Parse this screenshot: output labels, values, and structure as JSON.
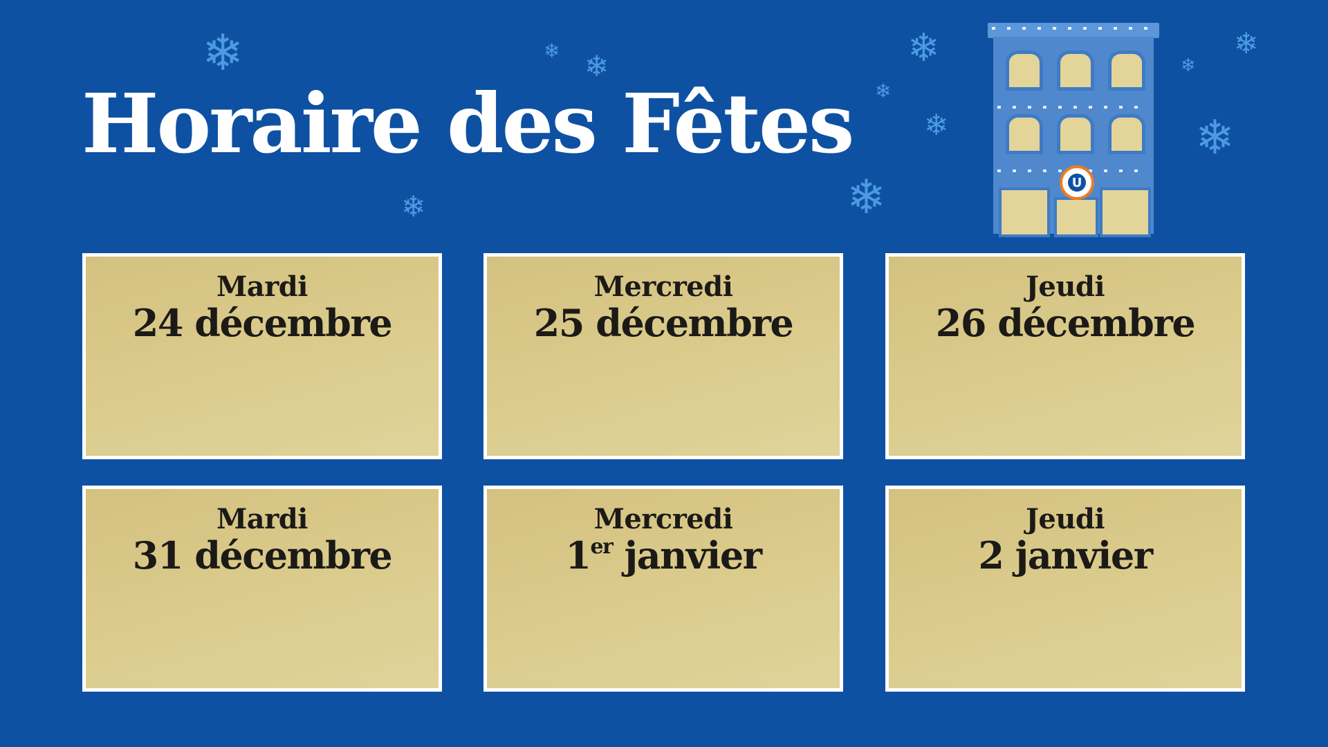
{
  "header": {
    "title": "Horaire des Fêtes"
  },
  "brand": {
    "logo_letter": "U",
    "accent": "#f07b1f",
    "background": "#0e51a3",
    "card_color": "#d8c888"
  },
  "decorations": {
    "icon": "snowflake-icon",
    "glyph": "❄"
  },
  "schedule": [
    {
      "day": "Mardi",
      "date": "24 décembre"
    },
    {
      "day": "Mercredi",
      "date": "25 décembre"
    },
    {
      "day": "Jeudi",
      "date": "26 décembre"
    },
    {
      "day": "Mardi",
      "date": "31 décembre"
    },
    {
      "day": "Mercredi",
      "date_num": "1",
      "date_sup": "er",
      "date_rest": " janvier"
    },
    {
      "day": "Jeudi",
      "date": "2 janvier"
    }
  ]
}
